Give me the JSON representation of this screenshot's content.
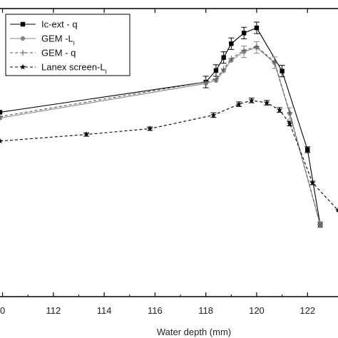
{
  "chart_data": {
    "type": "line",
    "title": "",
    "xlabel": "Water depth (mm)",
    "ylabel": "",
    "xlim": [
      109.9,
      123.2
    ],
    "ylim": [
      0,
      1
    ],
    "xticks": [
      110,
      112,
      114,
      116,
      118,
      120,
      122
    ],
    "tick_labels": [
      "0",
      "112",
      "114",
      "116",
      "118",
      "120",
      "122"
    ],
    "grid": false,
    "legend_position": "top-left",
    "series": [
      {
        "name": "Ic-ext  - q",
        "marker": "square",
        "line_style": "solid",
        "color": "#000000",
        "x": [
          109.9,
          118.0,
          118.4,
          118.7,
          119.0,
          119.5,
          120.0,
          121.0,
          122.0,
          122.5
        ],
        "y": [
          0.64,
          0.745,
          0.785,
          0.83,
          0.878,
          0.915,
          0.933,
          0.783,
          0.51,
          0.25
        ],
        "err": [
          0.0,
          0.02,
          0.02,
          0.02,
          0.02,
          0.02,
          0.02,
          0.02,
          0.01,
          0.01
        ]
      },
      {
        "name": "GEM  -L",
        "name_subscript": "i",
        "marker": "circle",
        "line_style": "solid",
        "color": "#888888",
        "x": [
          109.9,
          118.0,
          118.4,
          118.7,
          119.0,
          119.5,
          120.0,
          120.7,
          121.3,
          122.5
        ],
        "y": [
          0.62,
          0.74,
          0.75,
          0.784,
          0.82,
          0.85,
          0.865,
          0.812,
          0.636,
          0.25
        ],
        "err": [
          0.0,
          0.0,
          0.0,
          0.0,
          0.0,
          0.02,
          0.02,
          0.02,
          0.02,
          0.01
        ]
      },
      {
        "name": "GEM  - q",
        "marker": "plus",
        "line_style": "dashed",
        "color": "#555555",
        "x": [
          109.9,
          118.0,
          118.4,
          118.7,
          119.0,
          119.5,
          120.0,
          120.7,
          121.3,
          122.5
        ],
        "y": [
          0.625,
          0.745,
          0.756,
          0.79,
          0.826,
          0.855,
          0.868,
          0.815,
          0.638,
          0.25
        ],
        "err": [
          0.0,
          0.0,
          0.0,
          0.0,
          0.0,
          0.0,
          0.0,
          0.0,
          0.0,
          0.0
        ]
      },
      {
        "name": "Lanex screen-L",
        "name_subscript": "i",
        "marker": "star",
        "line_style": "dashed",
        "color": "#000000",
        "x": [
          109.9,
          113.3,
          115.8,
          118.3,
          119.3,
          119.8,
          120.4,
          120.9,
          121.3,
          122.2,
          123.2
        ],
        "y": [
          0.54,
          0.563,
          0.583,
          0.63,
          0.668,
          0.681,
          0.673,
          0.648,
          0.601,
          0.395,
          0.3
        ],
        "err": [
          0.0,
          0.006,
          0.006,
          0.008,
          0.008,
          0.008,
          0.008,
          0.008,
          0.008,
          0.006,
          0.0
        ]
      }
    ]
  }
}
